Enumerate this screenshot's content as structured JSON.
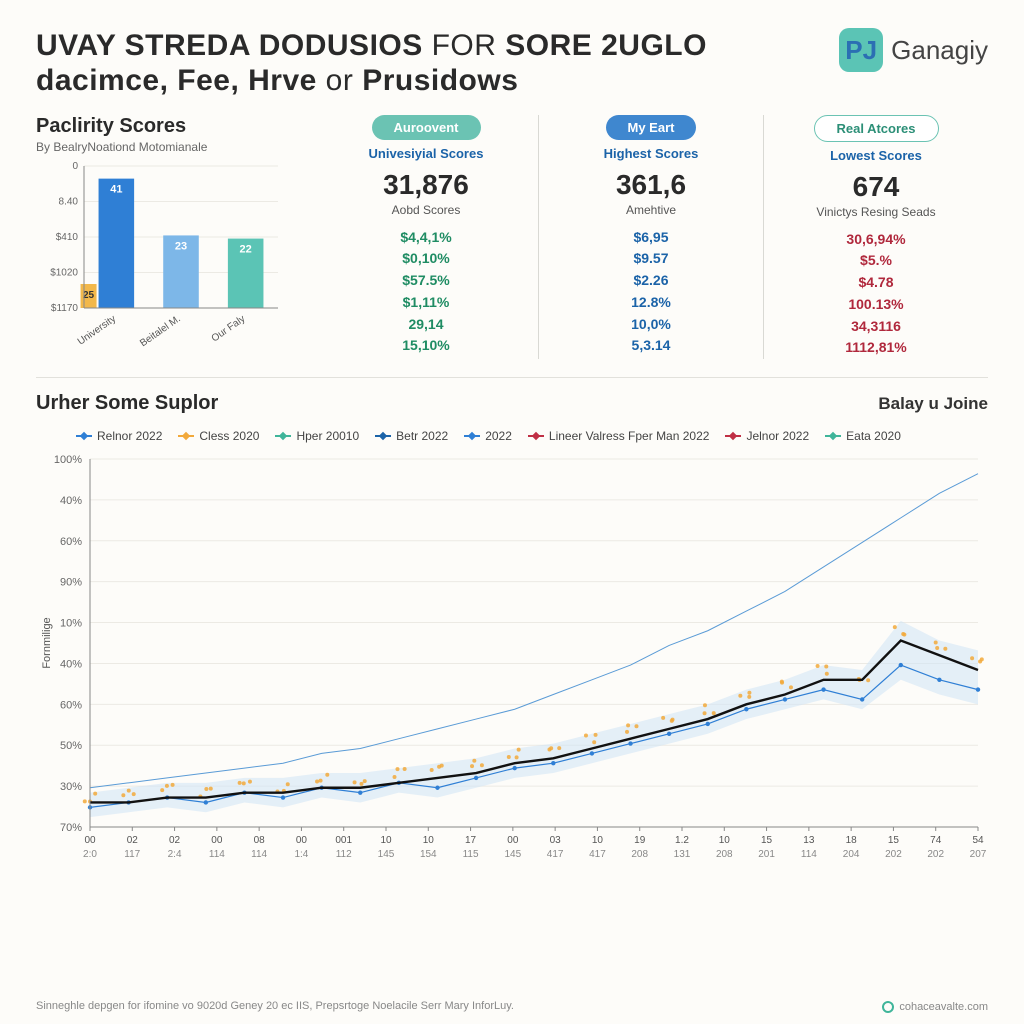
{
  "header": {
    "title_line1a": "UVAY STREDA DODUSIOS",
    "title_line1b": "for",
    "title_line1c": "SORE 2UGLO",
    "title_line2a": "dacimce, Fee, Hrve",
    "title_line2b": "or",
    "title_line2c": "Prusidows",
    "title_color": "#1a1a1a",
    "title_fontsize": 30
  },
  "brand": {
    "logo_letter": "PJ",
    "name": "Ganagiy",
    "logo_bg": "#5bc4b5",
    "logo_fg": "#2b6fb3"
  },
  "bar_chart": {
    "title": "Paclirity Scores",
    "subtitle": "By BealryNoationd Motomianale",
    "type": "bar",
    "categories": [
      "University",
      "Beitalel M.",
      "Our Faly"
    ],
    "values": [
      41,
      23,
      22
    ],
    "secondary_label_on_first": "25",
    "bar_colors": [
      "#2f7fd5",
      "#7db7e8",
      "#5bc4b5"
    ],
    "secondary_color": "#f2b84b",
    "yticks_labels": [
      "$1170",
      "$1020",
      "$410",
      "8.40",
      "0"
    ],
    "yticks_pos": [
      0,
      25,
      50,
      75,
      100
    ],
    "label_fontsize": 10,
    "axis_color": "#888",
    "grid_color": "#eceae4",
    "bar_width": 0.55,
    "background": "#fdfcf9"
  },
  "stat_columns": [
    {
      "pill": "Auroovent",
      "pill_bg": "#6bc3b3",
      "pill_fg": "#ffffff",
      "subhead": "Univesiyial Scores",
      "subhead_color": "#1b63a8",
      "big": "31,876",
      "biglabel": "Aobd Scores",
      "values": [
        "$4,4,1%",
        "$0,10%",
        "$57.5%",
        "$1,11%",
        "29,14",
        "15,10%"
      ],
      "value_color": "#1f8c63"
    },
    {
      "pill": "My Eart",
      "pill_bg": "#3f87cf",
      "pill_fg": "#ffffff",
      "subhead": "Highest Scores",
      "subhead_color": "#1b63a8",
      "big": "361,6",
      "biglabel": "Amehtive",
      "values": [
        "$6,95",
        "$9.57",
        "$2.26",
        "12.8%",
        "10,0%",
        "5,3.14"
      ],
      "value_color": "#1b63a8"
    },
    {
      "pill": "Real Atcores",
      "pill_bg": "#ffffff",
      "pill_fg": "#2c8f77",
      "pill_border": "#6bc3b3",
      "subhead": "Lowest Scores",
      "subhead_color": "#1b63a8",
      "big": "674",
      "biglabel": "Vinictys Resing Seads",
      "values": [
        "30,6,94%",
        "$5.%",
        "$4.78",
        "100.13%",
        "34,3116",
        "1112,81%"
      ],
      "value_color": "#b0283c"
    }
  ],
  "line_section": {
    "title": "Urher Some Suplor",
    "right_label": "Balay u Joine",
    "ylabel": "Fornmilige",
    "ylabel_fontsize": 11,
    "legend": [
      {
        "label": "Relnor 2022",
        "color": "#2f7fd5",
        "marker": "diamond"
      },
      {
        "label": "Cless 2020",
        "color": "#f2a93b",
        "marker": "diamond"
      },
      {
        "label": "Hper 20010",
        "color": "#3fb59a",
        "marker": "diamond"
      },
      {
        "label": "Betr 2022",
        "color": "#1b63a8",
        "marker": "diamond"
      },
      {
        "label": "2022",
        "color": "#2f7fd5",
        "marker": "diamond"
      },
      {
        "label": "Lineer Valress Fper Man 2022",
        "color": "#c03045",
        "marker": "diamond"
      },
      {
        "label": "Jelnor 2022",
        "color": "#c03045",
        "marker": "diamond"
      },
      {
        "label": "Eata 2020",
        "color": "#3fb59a",
        "marker": "diamond"
      }
    ],
    "yticks": [
      "100%",
      "40%",
      "60%",
      "90%",
      "10%",
      "40%",
      "60%",
      "50%",
      "30%",
      "70%"
    ],
    "xticks_top": [
      "00",
      "02",
      "02",
      "00",
      "08",
      "00",
      "001",
      "10",
      "10",
      "17",
      "00",
      "03",
      "10",
      "19",
      "1.2",
      "10",
      "15",
      "13",
      "18",
      "15",
      "74",
      "54"
    ],
    "xticks_bot": [
      "2:0",
      "117",
      "2:4",
      "114",
      "114",
      "1:4",
      "112",
      "145",
      "154",
      "115",
      "145",
      "417",
      "417",
      "208",
      "131",
      "208",
      "201",
      "114",
      "204",
      "202",
      "202",
      "207"
    ],
    "series": {
      "thin_blue": {
        "color": "#5a9bd6",
        "width": 1,
        "fill": false,
        "y": [
          38,
          39,
          40,
          41,
          42,
          43,
          45,
          46,
          48,
          50,
          52,
          54,
          57,
          60,
          63,
          67,
          70,
          74,
          78,
          83,
          88,
          93,
          98,
          102
        ]
      },
      "black_main": {
        "color": "#111",
        "width": 2.4,
        "fill": false,
        "y": [
          35,
          35,
          36,
          36,
          37,
          37,
          38,
          38,
          39,
          40,
          41,
          43,
          44,
          46,
          48,
          50,
          52,
          55,
          57,
          60,
          60,
          68,
          65,
          62
        ]
      },
      "blue_dots": {
        "color": "#2f7fd5",
        "width": 1.2,
        "dots": true,
        "y": [
          34,
          35,
          36,
          35,
          37,
          36,
          38,
          37,
          39,
          38,
          40,
          42,
          43,
          45,
          47,
          49,
          51,
          54,
          56,
          58,
          56,
          63,
          60,
          58
        ]
      },
      "orange_dots": {
        "color": "#f2a93b",
        "width": 0,
        "dots": true,
        "y": [
          36,
          37,
          38,
          37,
          39,
          38,
          40,
          39,
          41,
          42,
          43,
          45,
          46,
          48,
          50,
          52,
          54,
          57,
          59,
          62,
          60,
          70,
          67,
          64
        ]
      },
      "area": {
        "color": "#cfe3f5",
        "opacity": 0.55,
        "y_top": [
          37,
          38,
          39,
          39,
          40,
          40,
          41,
          41,
          42,
          43,
          44,
          46,
          47,
          49,
          51,
          53,
          55,
          58,
          60,
          63,
          62,
          72,
          68,
          66
        ],
        "y_bot": [
          32,
          33,
          34,
          33,
          35,
          34,
          36,
          35,
          37,
          36,
          38,
          40,
          41,
          43,
          45,
          47,
          49,
          52,
          54,
          56,
          54,
          60,
          57,
          55
        ]
      }
    },
    "ylim": [
      30,
      105
    ],
    "x_count": 24,
    "grid_color": "#eceae4",
    "axis_color": "#888",
    "background": "#fdfcf9"
  },
  "footer": {
    "note": "Sinneghle depgen for ifomine vo 9020d Geney 20 ec IIS, Prepsrtoge Noelacile Serr Mary InforLuy.",
    "attribution": "cohaceavalte.com",
    "attr_icon_color": "#3fb59a"
  },
  "colors": {
    "bg": "#fdfcf9",
    "text": "#2a2a2a",
    "divider": "#e2e1dc"
  }
}
